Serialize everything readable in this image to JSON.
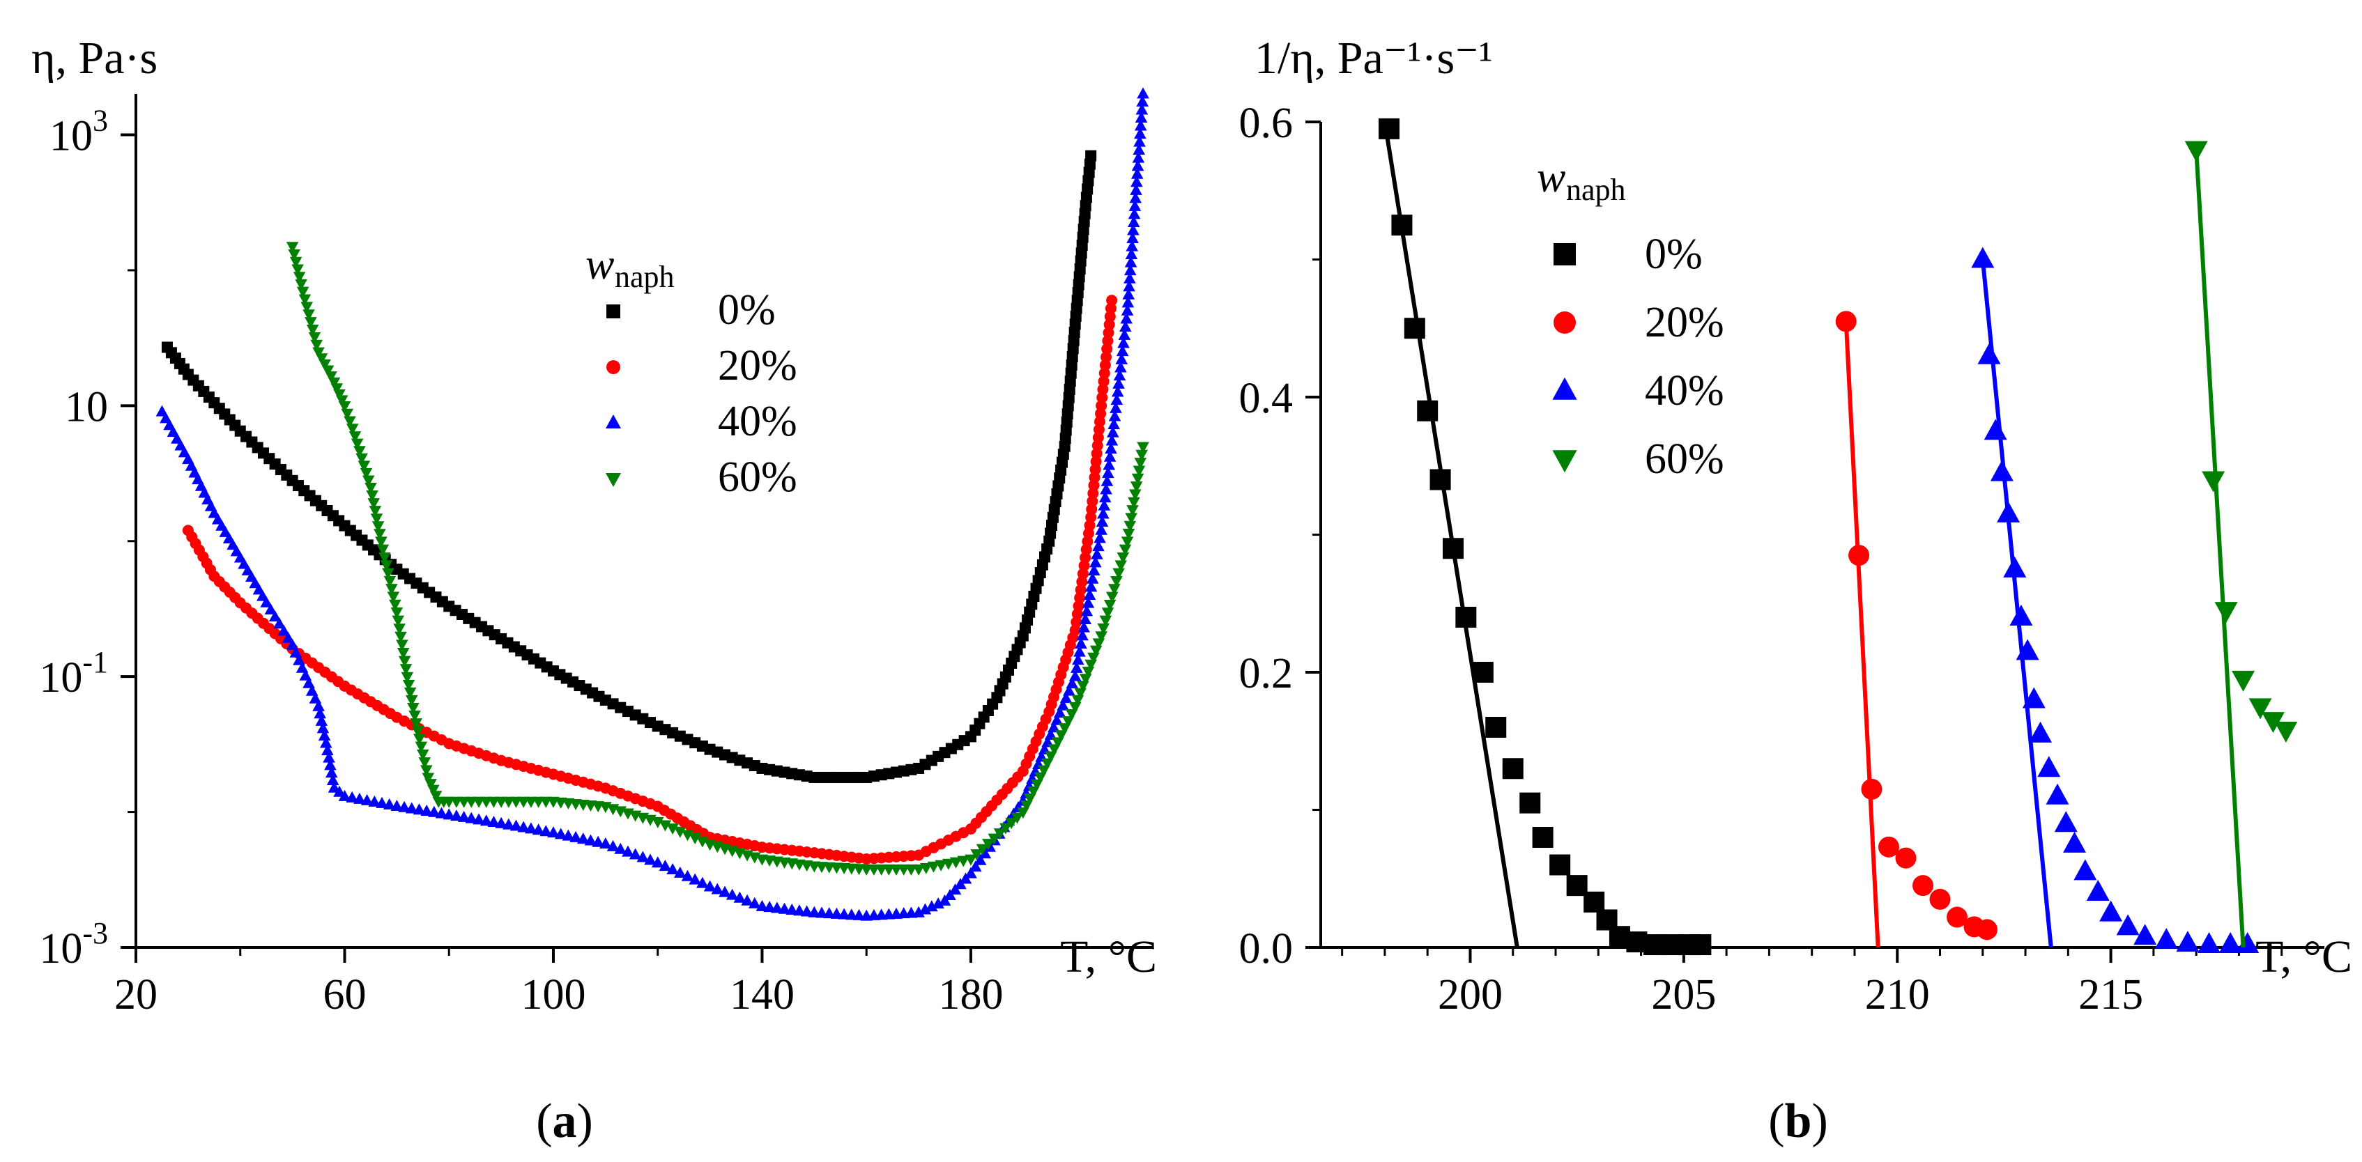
{
  "chart_data": [
    {
      "panel": "(a)",
      "type": "scatter",
      "yscale": "log",
      "title": "",
      "ylabel": "η, Pa·s",
      "xlabel": "T, °C",
      "xlim": [
        20,
        215
      ],
      "ylim": [
        0.001,
        2000
      ],
      "x_ticks": [
        "20",
        "60",
        "100",
        "140",
        "180"
      ],
      "x_tick_values": [
        20,
        60,
        100,
        140,
        180
      ],
      "y_ticks": [
        {
          "value": 0.001,
          "base": "10",
          "exp": "-3"
        },
        {
          "value": 0.1,
          "base": "10",
          "exp": "-1"
        },
        {
          "value": 10,
          "base": "10",
          "exp": ""
        },
        {
          "value": 1000,
          "base": "10",
          "exp": "3"
        }
      ],
      "legend": {
        "title": "w",
        "title_sub": "naph",
        "position": "upper-center"
      },
      "series": [
        {
          "name": "0%",
          "color": "#000000",
          "marker": "square",
          "x": [
            26,
            30,
            40,
            50,
            60,
            70,
            80,
            90,
            100,
            110,
            120,
            130,
            140,
            150,
            160,
            170,
            180,
            185,
            190,
            195,
            198,
            200,
            202,
            203
          ],
          "y": [
            27,
            17,
            6.5,
            2.8,
            1.3,
            0.62,
            0.33,
            0.19,
            0.11,
            0.067,
            0.043,
            0.029,
            0.021,
            0.018,
            0.018,
            0.021,
            0.036,
            0.07,
            0.2,
            1.0,
            5,
            40,
            300,
            700
          ]
        },
        {
          "name": "20%",
          "color": "#ff0000",
          "marker": "circle",
          "x": [
            30,
            35,
            40,
            50,
            60,
            70,
            80,
            90,
            100,
            110,
            120,
            130,
            140,
            150,
            160,
            170,
            180,
            190,
            195,
            200,
            203,
            205,
            207
          ],
          "y": [
            1.2,
            0.55,
            0.35,
            0.16,
            0.085,
            0.05,
            0.032,
            0.024,
            0.019,
            0.015,
            0.011,
            0.0065,
            0.0055,
            0.005,
            0.0045,
            0.0048,
            0.0075,
            0.02,
            0.055,
            0.22,
            1.5,
            10,
            60
          ]
        },
        {
          "name": "40%",
          "color": "#0000ff",
          "marker": "triangle-up",
          "x": [
            25,
            30,
            35,
            40,
            45,
            50,
            55,
            57,
            58,
            60,
            70,
            80,
            90,
            100,
            110,
            120,
            130,
            140,
            150,
            160,
            170,
            175,
            180,
            190,
            200,
            205,
            210,
            213
          ],
          "y": [
            9,
            4,
            1.6,
            0.75,
            0.35,
            0.17,
            0.06,
            0.025,
            0.015,
            0.013,
            0.011,
            0.0095,
            0.0082,
            0.007,
            0.0058,
            0.0042,
            0.0028,
            0.002,
            0.0018,
            0.0017,
            0.0018,
            0.0022,
            0.0035,
            0.012,
            0.1,
            1.2,
            50,
            2000
          ]
        },
        {
          "name": "60%",
          "color": "#008000",
          "marker": "triangle-down",
          "x": [
            50,
            52,
            55,
            58,
            60,
            62,
            65,
            67,
            70,
            72,
            74,
            76,
            78,
            80,
            90,
            100,
            110,
            120,
            130,
            140,
            150,
            160,
            170,
            180,
            190,
            200,
            205,
            210,
            213
          ],
          "y": [
            150,
            70,
            25,
            15,
            10,
            6,
            2.5,
            1.0,
            0.3,
            0.1,
            0.04,
            0.018,
            0.012,
            0.012,
            0.012,
            0.012,
            0.011,
            0.0085,
            0.0058,
            0.0045,
            0.004,
            0.0038,
            0.0038,
            0.0045,
            0.01,
            0.06,
            0.2,
            1.0,
            5
          ]
        }
      ]
    },
    {
      "panel": "(b)",
      "type": "scatter",
      "title": "",
      "ylabel": "1/η, Pa⁻¹·s⁻¹",
      "xlabel": "T, °C",
      "xlim": [
        196.5,
        220
      ],
      "ylim": [
        0,
        0.6
      ],
      "x_ticks": [
        "200",
        "205",
        "210",
        "215"
      ],
      "x_tick_values": [
        200,
        205,
        210,
        215
      ],
      "y_ticks": [
        "0.0",
        "0.2",
        "0.4",
        "0.6"
      ],
      "y_tick_values": [
        0,
        0.2,
        0.4,
        0.6
      ],
      "legend": {
        "title": "w",
        "title_sub": "naph",
        "position": "upper-left"
      },
      "series": [
        {
          "name": "0%",
          "color": "#000000",
          "marker": "square",
          "x": [
            198.1,
            198.4,
            198.7,
            199.0,
            199.3,
            199.6,
            199.9,
            200.3,
            200.6,
            201.0,
            201.4,
            201.7,
            202.1,
            202.5,
            202.9,
            203.2,
            203.5,
            203.9,
            204.3,
            204.7,
            205.1,
            205.4
          ],
          "y": [
            0.595,
            0.525,
            0.45,
            0.39,
            0.34,
            0.29,
            0.24,
            0.2,
            0.16,
            0.13,
            0.105,
            0.08,
            0.06,
            0.045,
            0.033,
            0.02,
            0.008,
            0.004,
            0.002,
            0.002,
            0.002,
            0.002
          ],
          "fit_line": {
            "x": [
              198.0,
              201.1
            ],
            "y": [
              0.6,
              0.0
            ]
          }
        },
        {
          "name": "20%",
          "color": "#ff0000",
          "marker": "circle",
          "x": [
            208.8,
            209.1,
            209.4,
            209.8,
            210.2,
            210.6,
            211.0,
            211.4,
            211.8,
            212.1
          ],
          "y": [
            0.455,
            0.285,
            0.115,
            0.073,
            0.065,
            0.045,
            0.035,
            0.022,
            0.015,
            0.013
          ],
          "fit_line": {
            "x": [
              208.8,
              209.55
            ],
            "y": [
              0.455,
              0.0
            ]
          }
        },
        {
          "name": "40%",
          "color": "#0000ff",
          "marker": "triangle-up",
          "x": [
            212.0,
            212.15,
            212.3,
            212.45,
            212.6,
            212.75,
            212.9,
            213.05,
            213.2,
            213.35,
            213.55,
            213.75,
            213.95,
            214.15,
            214.4,
            214.7,
            215.0,
            215.4,
            215.8,
            216.3,
            216.8,
            217.3,
            217.8,
            218.2
          ],
          "y": [
            0.5,
            0.43,
            0.375,
            0.345,
            0.315,
            0.275,
            0.24,
            0.215,
            0.18,
            0.155,
            0.13,
            0.11,
            0.09,
            0.075,
            0.055,
            0.04,
            0.025,
            0.015,
            0.008,
            0.005,
            0.003,
            0.002,
            0.002,
            0.002
          ],
          "fit_line": {
            "x": [
              212.0,
              213.6
            ],
            "y": [
              0.5,
              0.0
            ]
          }
        },
        {
          "name": "60%",
          "color": "#008000",
          "marker": "triangle-down",
          "x": [
            217.0,
            217.4,
            217.7,
            218.1,
            218.5,
            218.8,
            219.1
          ],
          "y": [
            0.58,
            0.34,
            0.245,
            0.195,
            0.175,
            0.165,
            0.158
          ],
          "fit_line": {
            "x": [
              217.0,
              218.1
            ],
            "y": [
              0.58,
              0.0
            ]
          }
        }
      ]
    }
  ],
  "captions": {
    "a": "a",
    "b": "b"
  }
}
